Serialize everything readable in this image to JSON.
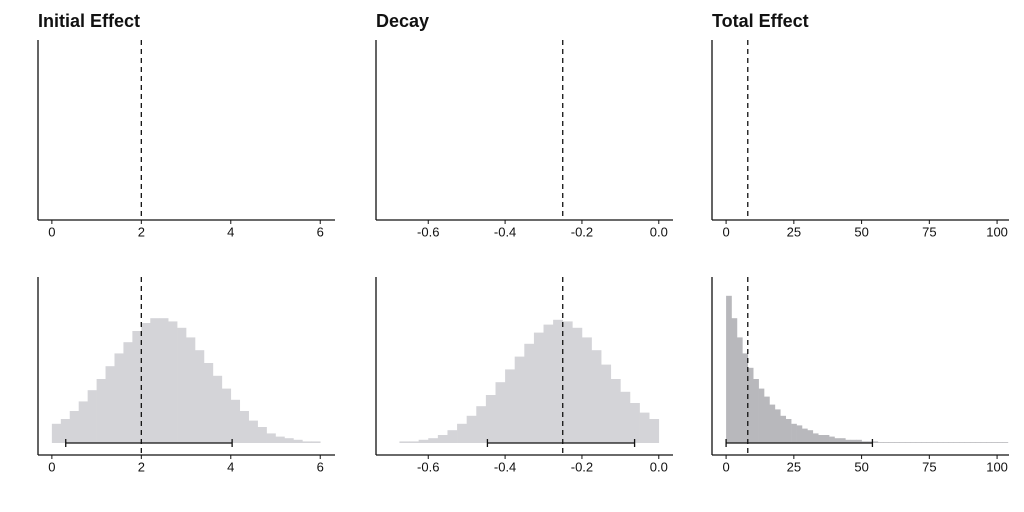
{
  "chart_data": [
    {
      "type": "histogram",
      "title": "Initial Effect",
      "xlim": [
        -0.31,
        6.33
      ],
      "xticks": [
        0,
        2,
        4,
        6
      ],
      "ylim": [
        0,
        100
      ],
      "reference": 2,
      "interval": [
        0.31,
        4.03
      ],
      "color": "#d4d4d8",
      "bins": [
        0,
        0.2,
        0.4,
        0.6,
        0.8,
        1.0,
        1.2,
        1.4,
        1.6,
        1.8,
        2.0,
        2.2,
        2.4,
        2.6,
        2.8,
        3.0,
        3.2,
        3.4,
        3.6,
        3.8,
        4.0,
        4.2,
        4.4,
        4.6,
        4.8,
        5.0,
        5.2,
        5.4,
        5.6,
        5.8,
        6.0
      ],
      "values": [
        12,
        15,
        20,
        26,
        33,
        40,
        48,
        56,
        63,
        70,
        75,
        78,
        78,
        76,
        72,
        66,
        58,
        50,
        42,
        34,
        27,
        20,
        14,
        10,
        6,
        4,
        3,
        2,
        1,
        1
      ]
    },
    {
      "type": "histogram",
      "title": "Decay",
      "xlim": [
        -0.736,
        0.037
      ],
      "xticks": [
        -0.6,
        -0.4,
        -0.2,
        {
          "value": 0,
          "label": "0.0"
        }
      ],
      "ylim": [
        0,
        100
      ],
      "reference": -0.25,
      "interval": [
        -0.446,
        -0.063
      ],
      "color": "#d4d4d8",
      "bins": [
        -0.7,
        -0.675,
        -0.65,
        -0.625,
        -0.6,
        -0.575,
        -0.55,
        -0.525,
        -0.5,
        -0.475,
        -0.45,
        -0.425,
        -0.4,
        -0.375,
        -0.35,
        -0.325,
        -0.3,
        -0.275,
        -0.25,
        -0.225,
        -0.2,
        -0.175,
        -0.15,
        -0.125,
        -0.1,
        -0.075,
        -0.05,
        -0.025,
        0
      ],
      "values": [
        0,
        1,
        1,
        2,
        3,
        5,
        8,
        12,
        17,
        23,
        30,
        38,
        46,
        54,
        62,
        69,
        74,
        77,
        76,
        72,
        66,
        58,
        49,
        40,
        32,
        25,
        19,
        15
      ]
    },
    {
      "type": "histogram",
      "title": "Total Effect",
      "xlim": [
        -5.2,
        104.4
      ],
      "xticks": [
        0,
        25,
        50,
        75,
        100
      ],
      "ylim": [
        0,
        100
      ],
      "reference": 8,
      "interval": [
        0,
        54
      ],
      "color": "#b8b8bc",
      "bins": [
        0,
        2,
        4,
        6,
        8,
        10,
        12,
        14,
        16,
        18,
        20,
        22,
        24,
        26,
        28,
        30,
        32,
        34,
        36,
        38,
        40,
        42,
        44,
        46,
        48,
        50,
        52,
        54,
        56,
        58,
        60,
        62,
        64,
        66,
        68,
        70,
        72,
        74,
        76,
        78,
        80,
        82,
        84,
        86,
        88,
        90,
        92,
        94,
        96,
        98,
        100,
        102,
        104
      ],
      "values": [
        92,
        78,
        66,
        56,
        47,
        40,
        34,
        29,
        24,
        21,
        17,
        15,
        12,
        11,
        9,
        8,
        6,
        5,
        5,
        4,
        3,
        3,
        2,
        2,
        2,
        1,
        1,
        1,
        0.5,
        0.5,
        0.5,
        0.5,
        0.5,
        0.5,
        0.5,
        0.5,
        0.5,
        0.5,
        0.5,
        0.5,
        0.5,
        0.5,
        0.5,
        0.5,
        0.5,
        0.5,
        0.5,
        0.5,
        0.5,
        0.5,
        0.5,
        0.5
      ]
    }
  ]
}
